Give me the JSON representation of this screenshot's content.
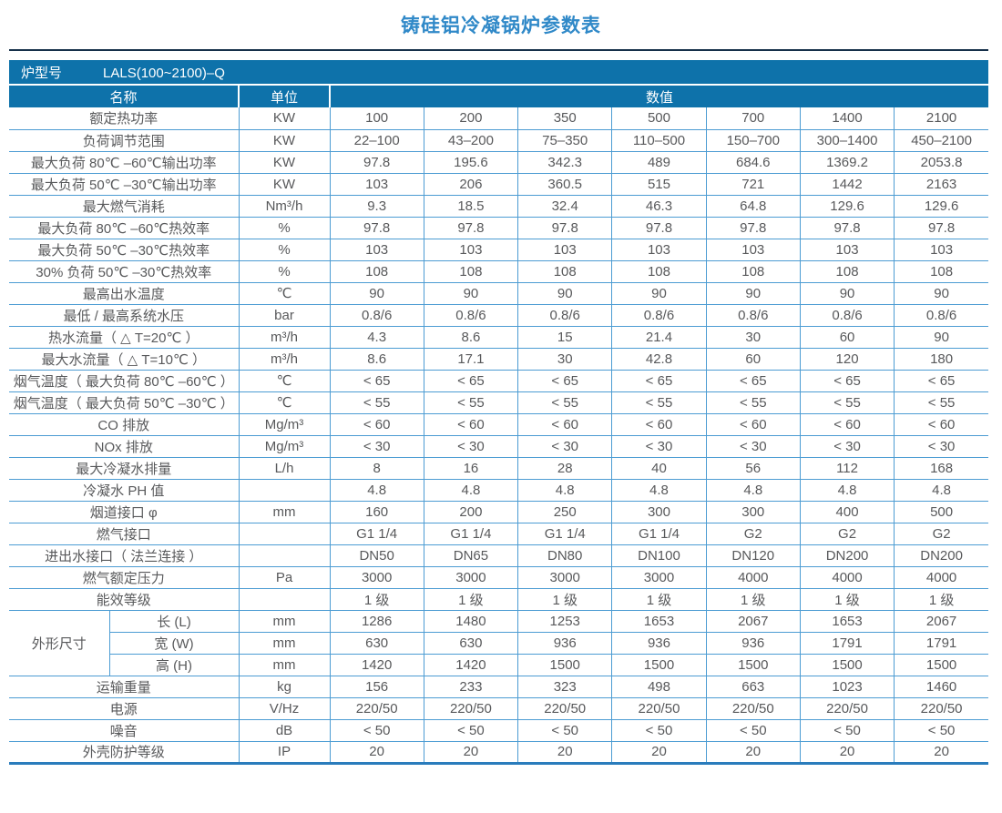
{
  "title": "铸硅铝冷凝锅炉参数表",
  "model": {
    "label": "炉型号",
    "value": "LALS(100~2100)–Q"
  },
  "headers": {
    "name": "名称",
    "unit": "单位",
    "value": "数值"
  },
  "dimension_group_label": "外形尺寸",
  "colors": {
    "header_bg": "#0E72AA",
    "rule": "#4C9CD3",
    "thick_rule": "#2A7CBC",
    "title_color": "#3089C8",
    "text": "#58595B",
    "top_rule": "#16304A"
  },
  "rows": [
    {
      "name": "额定热功率",
      "unit": "KW",
      "values": [
        "100",
        "200",
        "350",
        "500",
        "700",
        "1400",
        "2100"
      ]
    },
    {
      "name": "负荷调节范围",
      "unit": "KW",
      "values": [
        "22–100",
        "43–200",
        "75–350",
        "110–500",
        "150–700",
        "300–1400",
        "450–2100"
      ]
    },
    {
      "name": "最大负荷 80℃ –60℃输出功率",
      "unit": "KW",
      "values": [
        "97.8",
        "195.6",
        "342.3",
        "489",
        "684.6",
        "1369.2",
        "2053.8"
      ]
    },
    {
      "name": "最大负荷 50℃ –30℃输出功率",
      "unit": "KW",
      "values": [
        "103",
        "206",
        "360.5",
        "515",
        "721",
        "1442",
        "2163"
      ]
    },
    {
      "name": "最大燃气消耗",
      "unit": "Nm³/h",
      "values": [
        "9.3",
        "18.5",
        "32.4",
        "46.3",
        "64.8",
        "129.6",
        "129.6"
      ]
    },
    {
      "name": "最大负荷 80℃ –60℃热效率",
      "unit": "%",
      "values": [
        "97.8",
        "97.8",
        "97.8",
        "97.8",
        "97.8",
        "97.8",
        "97.8"
      ]
    },
    {
      "name": "最大负荷 50℃ –30℃热效率",
      "unit": "%",
      "values": [
        "103",
        "103",
        "103",
        "103",
        "103",
        "103",
        "103"
      ]
    },
    {
      "name": "30% 负荷 50℃ –30℃热效率",
      "unit": "%",
      "values": [
        "108",
        "108",
        "108",
        "108",
        "108",
        "108",
        "108"
      ]
    },
    {
      "name": "最高出水温度",
      "unit": "℃",
      "values": [
        "90",
        "90",
        "90",
        "90",
        "90",
        "90",
        "90"
      ]
    },
    {
      "name": "最低 / 最高系统水压",
      "unit": "bar",
      "values": [
        "0.8/6",
        "0.8/6",
        "0.8/6",
        "0.8/6",
        "0.8/6",
        "0.8/6",
        "0.8/6"
      ]
    },
    {
      "name": "热水流量（ △ T=20℃ ）",
      "unit": "m³/h",
      "values": [
        "4.3",
        "8.6",
        "15",
        "21.4",
        "30",
        "60",
        "90"
      ]
    },
    {
      "name": "最大水流量（ △ T=10℃ ）",
      "unit": "m³/h",
      "values": [
        "8.6",
        "17.1",
        "30",
        "42.8",
        "60",
        "120",
        "180"
      ]
    },
    {
      "name": "烟气温度（ 最大负荷 80℃ –60℃ ）",
      "unit": "℃",
      "values": [
        "< 65",
        "< 65",
        "< 65",
        "< 65",
        "< 65",
        "< 65",
        "< 65"
      ]
    },
    {
      "name": "烟气温度（ 最大负荷 50℃ –30℃ ）",
      "unit": "℃",
      "values": [
        "< 55",
        "< 55",
        "< 55",
        "< 55",
        "< 55",
        "< 55",
        "< 55"
      ]
    },
    {
      "name": "CO 排放",
      "unit": "Mg/m³",
      "values": [
        "< 60",
        "< 60",
        "< 60",
        "< 60",
        "< 60",
        "< 60",
        "< 60"
      ]
    },
    {
      "name": "NOx 排放",
      "unit": "Mg/m³",
      "values": [
        "< 30",
        "< 30",
        "< 30",
        "< 30",
        "< 30",
        "< 30",
        "< 30"
      ]
    },
    {
      "name": "最大冷凝水排量",
      "unit": "L/h",
      "values": [
        "8",
        "16",
        "28",
        "40",
        "56",
        "112",
        "168"
      ]
    },
    {
      "name": "冷凝水 PH 值",
      "unit": "",
      "values": [
        "4.8",
        "4.8",
        "4.8",
        "4.8",
        "4.8",
        "4.8",
        "4.8"
      ]
    },
    {
      "name": "烟道接口 φ",
      "unit": "mm",
      "values": [
        "160",
        "200",
        "250",
        "300",
        "300",
        "400",
        "500"
      ]
    },
    {
      "name": "燃气接口",
      "unit": "",
      "values": [
        "G1 1/4",
        "G1 1/4",
        "G1 1/4",
        "G1 1/4",
        "G2",
        "G2",
        "G2"
      ]
    },
    {
      "name": "进出水接口（ 法兰连接 ）",
      "unit": "",
      "values": [
        "DN50",
        "DN65",
        "DN80",
        "DN100",
        "DN120",
        "DN200",
        "DN200"
      ]
    },
    {
      "name": "燃气额定压力",
      "unit": "Pa",
      "values": [
        "3000",
        "3000",
        "3000",
        "3000",
        "4000",
        "4000",
        "4000"
      ]
    },
    {
      "name": "能效等级",
      "unit": "",
      "values": [
        "1 级",
        "1 级",
        "1 级",
        "1 级",
        "1 级",
        "1 级",
        "1 级"
      ]
    },
    {
      "group_start": true,
      "name": "长 (L)",
      "unit": "mm",
      "values": [
        "1286",
        "1480",
        "1253",
        "1653",
        "2067",
        "1653",
        "2067"
      ]
    },
    {
      "in_group": true,
      "name": "宽 (W)",
      "unit": "mm",
      "values": [
        "630",
        "630",
        "936",
        "936",
        "936",
        "1791",
        "1791"
      ]
    },
    {
      "in_group": true,
      "name": "高 (H)",
      "unit": "mm",
      "values": [
        "1420",
        "1420",
        "1500",
        "1500",
        "1500",
        "1500",
        "1500"
      ]
    },
    {
      "name": "运输重量",
      "unit": "kg",
      "values": [
        "156",
        "233",
        "323",
        "498",
        "663",
        "1023",
        "1460"
      ]
    },
    {
      "name": "电源",
      "unit": "V/Hz",
      "values": [
        "220/50",
        "220/50",
        "220/50",
        "220/50",
        "220/50",
        "220/50",
        "220/50"
      ]
    },
    {
      "name": "噪音",
      "unit": "dB",
      "values": [
        "< 50",
        "< 50",
        "< 50",
        "< 50",
        "< 50",
        "< 50",
        "< 50"
      ]
    },
    {
      "name": "外壳防护等级",
      "unit": "IP",
      "values": [
        "20",
        "20",
        "20",
        "20",
        "20",
        "20",
        "20"
      ]
    }
  ]
}
